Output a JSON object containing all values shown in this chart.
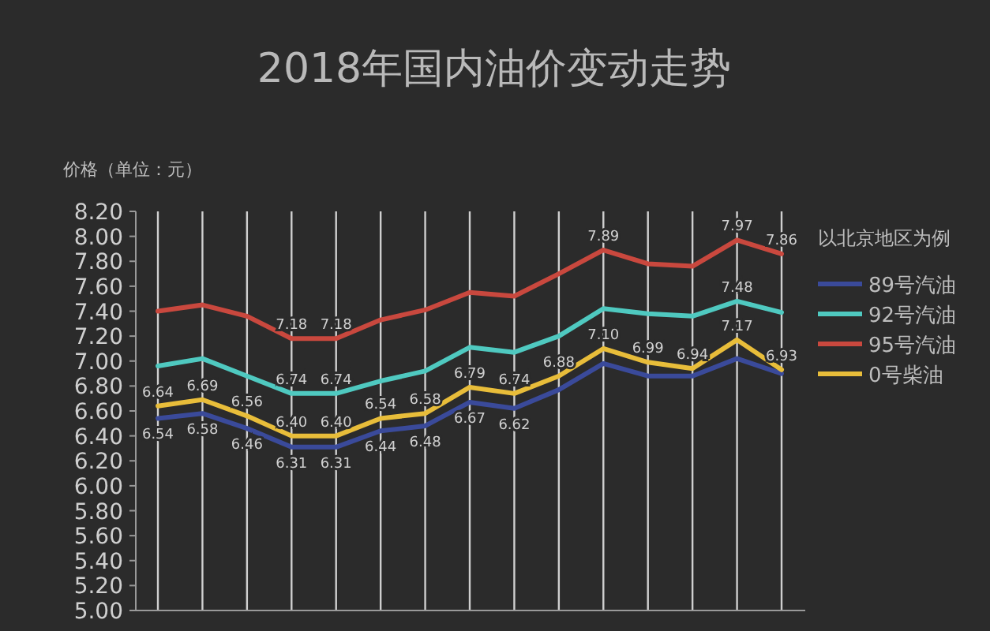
{
  "chart_data": {
    "type": "line",
    "title": "2018年国内油价变动走势",
    "ylabel": "价格（单位：元）",
    "annotations": [
      "以北京地区为例"
    ],
    "categories": [
      null,
      null,
      null,
      null,
      null,
      null,
      null,
      null,
      null,
      null,
      null,
      null,
      null,
      null,
      null
    ],
    "series": [
      {
        "name": "89号汽油",
        "color": "#3a4a9a",
        "values": [
          6.54,
          6.58,
          6.46,
          6.31,
          6.31,
          6.44,
          6.48,
          6.67,
          6.62,
          6.77,
          6.98,
          6.88,
          6.88,
          7.02,
          6.9
        ],
        "value_labels": [
          "6.54",
          "6.58",
          "6.46",
          "6.31",
          "6.31",
          "6.44",
          "6.48",
          "6.67",
          "6.62",
          null,
          null,
          null,
          null,
          null,
          null
        ]
      },
      {
        "name": "92号汽油",
        "color": "#4fc9c0",
        "values": [
          6.96,
          7.02,
          6.88,
          6.74,
          6.74,
          6.84,
          6.92,
          7.11,
          7.07,
          7.2,
          7.42,
          7.38,
          7.36,
          7.48,
          7.39
        ],
        "value_labels": [
          null,
          null,
          null,
          "6.74",
          "6.74",
          null,
          null,
          null,
          null,
          null,
          null,
          null,
          null,
          "7.48",
          null
        ]
      },
      {
        "name": "95号汽油",
        "color": "#c9483e",
        "values": [
          7.4,
          7.45,
          7.36,
          7.18,
          7.18,
          7.33,
          7.41,
          7.55,
          7.52,
          7.7,
          7.89,
          7.78,
          7.76,
          7.97,
          7.86
        ],
        "value_labels": [
          null,
          null,
          null,
          "7.18",
          "7.18",
          null,
          null,
          null,
          null,
          null,
          "7.89",
          null,
          null,
          "7.97",
          "7.86"
        ]
      },
      {
        "name": "0号柴油",
        "color": "#e8bd3a",
        "values": [
          6.64,
          6.69,
          6.56,
          6.4,
          6.4,
          6.54,
          6.58,
          6.79,
          6.74,
          6.88,
          7.1,
          6.99,
          6.94,
          7.17,
          6.93
        ],
        "value_labels": [
          "6.64",
          "6.69",
          "6.56",
          "6.40",
          "6.40",
          "6.54",
          "6.58",
          "6.79",
          "6.74",
          "6.88",
          "7.10",
          "6.99",
          "6.94",
          "7.17",
          "6.93"
        ]
      }
    ],
    "ylim": [
      5,
      8.2
    ],
    "yticks": [
      {
        "value": 5,
        "label": "5.00"
      },
      {
        "value": 5.2,
        "label": "5.20"
      },
      {
        "value": 5.4,
        "label": "5.40"
      },
      {
        "value": 5.6,
        "label": "5.60"
      },
      {
        "value": 5.8,
        "label": "5.80"
      },
      {
        "value": 6,
        "label": "6.00"
      },
      {
        "value": 6.2,
        "label": "6.20"
      },
      {
        "value": 6.4,
        "label": "6.40"
      },
      {
        "value": 6.6,
        "label": "6.60"
      },
      {
        "value": 6.8,
        "label": "6.80"
      },
      {
        "value": 7,
        "label": "7.00"
      },
      {
        "value": 7.2,
        "label": "7.20"
      },
      {
        "value": 7.4,
        "label": "7.40"
      },
      {
        "value": 7.6,
        "label": "7.60"
      },
      {
        "value": 7.8,
        "label": "7.80"
      },
      {
        "value": 8,
        "label": "8.00"
      },
      {
        "value": 8.2,
        "label": "8.20"
      }
    ],
    "grid": "x",
    "legend": "right",
    "marker": "none",
    "line_style": "solid"
  }
}
